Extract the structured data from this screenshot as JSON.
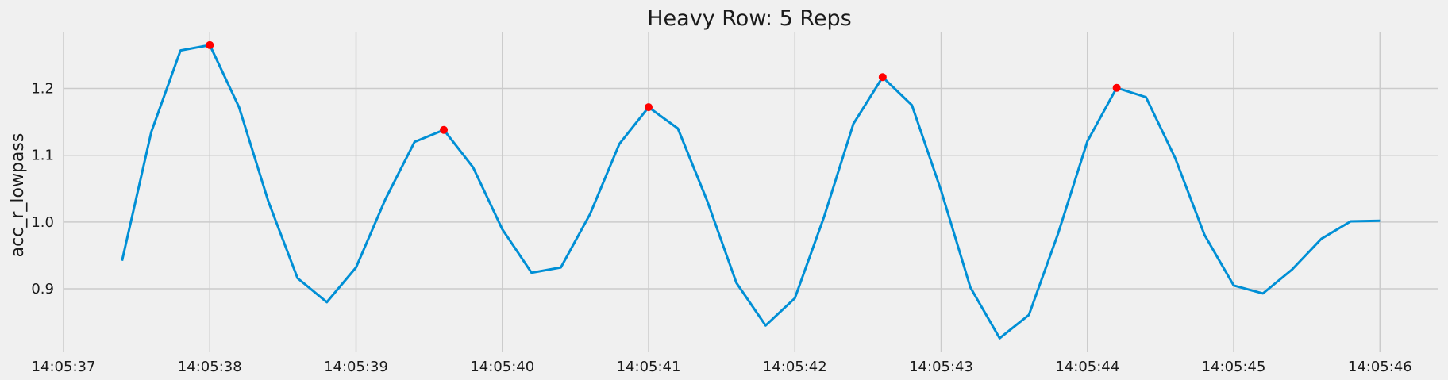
{
  "chart_data": {
    "type": "line",
    "title": "Heavy Row: 5 Reps",
    "ylabel": "acc_r_lowpass",
    "xlabel": "",
    "x_tick_labels": [
      "14:05:37",
      "14:05:38",
      "14:05:39",
      "14:05:40",
      "14:05:41",
      "14:05:42",
      "14:05:43",
      "14:05:44",
      "14:05:45",
      "14:05:46"
    ],
    "y_tick_labels": [
      "0.9",
      "1.0",
      "1.1",
      "1.2"
    ],
    "y_ticks": [
      0.9,
      1.0,
      1.1,
      1.2
    ],
    "xlim": [
      "14:05:37.0",
      "14:05:46.4"
    ],
    "ylim": [
      0.805,
      1.285
    ],
    "grid": true,
    "line_color": "#008fd5",
    "peak_color": "#ff0000",
    "series": [
      {
        "x": [
          "14:05:37.4",
          "14:05:37.6",
          "14:05:37.8",
          "14:05:38.0",
          "14:05:38.2",
          "14:05:38.4",
          "14:05:38.6",
          "14:05:38.8",
          "14:05:39.0",
          "14:05:39.2",
          "14:05:39.4",
          "14:05:39.6",
          "14:05:39.8",
          "14:05:40.0",
          "14:05:40.2",
          "14:05:40.4",
          "14:05:40.6",
          "14:05:40.8",
          "14:05:41.0",
          "14:05:41.2",
          "14:05:41.4",
          "14:05:41.6",
          "14:05:41.8",
          "14:05:42.0",
          "14:05:42.2",
          "14:05:42.4",
          "14:05:42.6",
          "14:05:42.8",
          "14:05:43.0",
          "14:05:43.2",
          "14:05:43.4",
          "14:05:43.6",
          "14:05:43.8",
          "14:05:44.0",
          "14:05:44.2",
          "14:05:44.4",
          "14:05:44.6",
          "14:05:44.8",
          "14:05:45.0",
          "14:05:45.2",
          "14:05:45.4",
          "14:05:45.6",
          "14:05:45.8",
          "14:05:46.0"
        ],
        "values": [
          0.942,
          1.135,
          1.257,
          1.265,
          1.172,
          1.031,
          0.916,
          0.88,
          0.932,
          1.034,
          1.12,
          1.138,
          1.082,
          0.989,
          0.924,
          0.932,
          1.012,
          1.117,
          1.172,
          1.14,
          1.032,
          0.909,
          0.845,
          0.886,
          1.008,
          1.147,
          1.217,
          1.175,
          1.047,
          0.902,
          0.826,
          0.861,
          0.983,
          1.121,
          1.201,
          1.187,
          1.096,
          0.981,
          0.905,
          0.893,
          0.929,
          0.975,
          1.001,
          1.002
        ]
      }
    ],
    "peaks": {
      "x": [
        "14:05:38.0",
        "14:05:39.6",
        "14:05:41.0",
        "14:05:42.6",
        "14:05:44.2"
      ],
      "values": [
        1.265,
        1.138,
        1.172,
        1.217,
        1.201
      ]
    }
  }
}
